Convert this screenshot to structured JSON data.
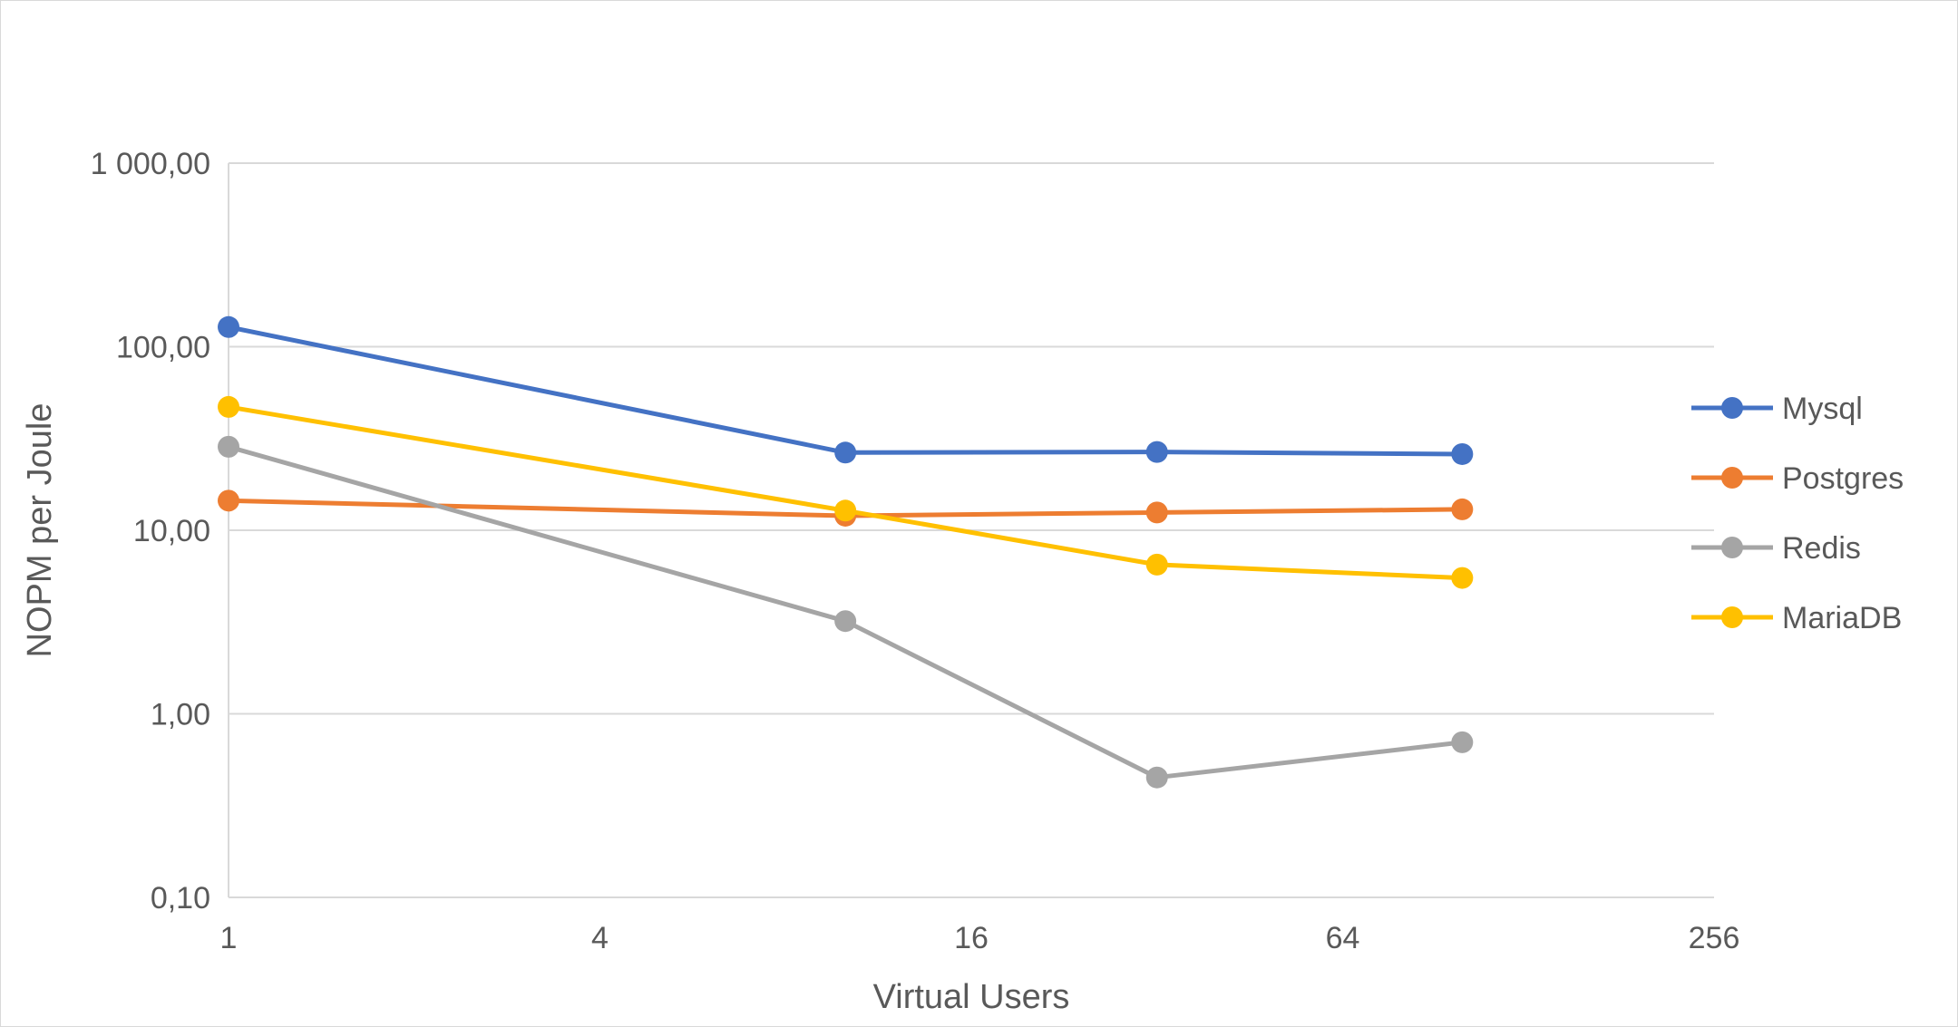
{
  "chart_data": {
    "type": "line",
    "title": "",
    "xlabel": "Virtual Users",
    "ylabel": "NOPM per Joule",
    "x_scale": "log2",
    "y_scale": "log10",
    "xlim": [
      1,
      256
    ],
    "ylim": [
      0.1,
      1000
    ],
    "x_ticks": [
      1,
      4,
      16,
      64,
      256
    ],
    "x_tick_labels": [
      "1",
      "4",
      "16",
      "64",
      "256"
    ],
    "y_ticks": [
      0.1,
      1,
      10,
      100,
      1000
    ],
    "y_tick_labels": [
      "0,10",
      "1,00",
      "10,00",
      "100,00",
      "1 000,00"
    ],
    "grid": "horizontal",
    "legend_position": "right",
    "x": [
      1,
      10,
      32,
      100
    ],
    "series": [
      {
        "name": "Mysql",
        "color": "#4472C4",
        "values": [
          128,
          26.5,
          26.7,
          26.0
        ]
      },
      {
        "name": "Postgres",
        "color": "#ED7D31",
        "values": [
          14.5,
          12.0,
          12.5,
          13.0
        ]
      },
      {
        "name": "Redis",
        "color": "#A5A5A5",
        "values": [
          28.5,
          3.2,
          0.45,
          0.7
        ]
      },
      {
        "name": "MariaDB",
        "color": "#FFC000",
        "values": [
          47,
          12.8,
          6.5,
          5.5
        ]
      }
    ]
  }
}
